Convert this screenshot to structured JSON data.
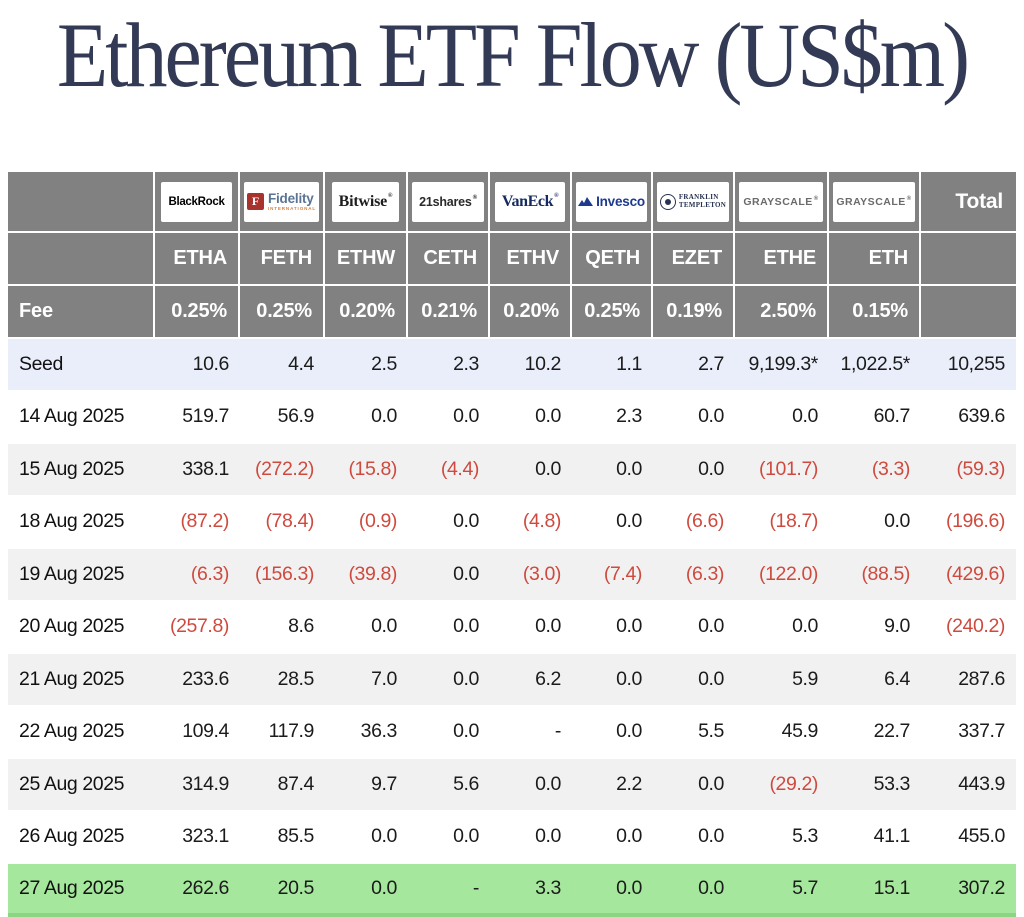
{
  "title": "Ethereum ETF Flow (US$m)",
  "colors": {
    "header_bg": "#818181",
    "seed_row_bg": "#e9eefa",
    "alt_row_bg": "#f1f1f2",
    "current_row_bg": "#a5e79c",
    "current_row_edge": "#8bd584",
    "negative_red": "#cf4a3e",
    "title_navy": "#333a55"
  },
  "chart_data": {
    "type": "table",
    "title": "Ethereum ETF Flow (US$m)",
    "total_label": "Total",
    "fee_label": "Fee",
    "issuers": [
      {
        "name": "BlackRock",
        "logo_kind": "blackrock"
      },
      {
        "name": "Fidelity",
        "sub": "INTERNATIONAL",
        "logo_kind": "fidelity"
      },
      {
        "name": "Bitwise",
        "mark": "®",
        "logo_kind": "bitwise"
      },
      {
        "name": "21shares",
        "mark": "®",
        "logo_kind": "21shares"
      },
      {
        "name": "VanEck",
        "mark": "®",
        "logo_kind": "vaneck"
      },
      {
        "name": "Invesco",
        "logo_kind": "invesco"
      },
      {
        "name": "Franklin Templeton",
        "lines": [
          "FRANKLIN",
          "TEMPLETON"
        ],
        "logo_kind": "franklin"
      },
      {
        "name": "GRAYSCALE",
        "mark": "®",
        "logo_kind": "grayscale"
      },
      {
        "name": "GRAYSCALE",
        "mark": "®",
        "logo_kind": "grayscale"
      }
    ],
    "tickers": [
      "ETHA",
      "FETH",
      "ETHW",
      "CETH",
      "ETHV",
      "QETH",
      "EZET",
      "ETHE",
      "ETH"
    ],
    "fees": [
      "0.25%",
      "0.25%",
      "0.20%",
      "0.21%",
      "0.20%",
      "0.25%",
      "0.19%",
      "2.50%",
      "0.15%"
    ],
    "rows": [
      {
        "label": "Seed",
        "highlight": "seed",
        "values": [
          "10.6",
          "4.4",
          "2.5",
          "2.3",
          "10.2",
          "1.1",
          "2.7",
          "9,199.3*",
          "1,022.5*"
        ],
        "total": "10,255"
      },
      {
        "label": "14 Aug 2025",
        "highlight": null,
        "values": [
          "519.7",
          "56.9",
          "0.0",
          "0.0",
          "0.0",
          "2.3",
          "0.0",
          "0.0",
          "60.7"
        ],
        "total": "639.6"
      },
      {
        "label": "15 Aug 2025",
        "highlight": null,
        "values": [
          "338.1",
          "(272.2)",
          "(15.8)",
          "(4.4)",
          "0.0",
          "0.0",
          "0.0",
          "(101.7)",
          "(3.3)"
        ],
        "total": "(59.3)"
      },
      {
        "label": "18 Aug 2025",
        "highlight": null,
        "values": [
          "(87.2)",
          "(78.4)",
          "(0.9)",
          "0.0",
          "(4.8)",
          "0.0",
          "(6.6)",
          "(18.7)",
          "0.0"
        ],
        "total": "(196.6)"
      },
      {
        "label": "19 Aug 2025",
        "highlight": null,
        "values": [
          "(6.3)",
          "(156.3)",
          "(39.8)",
          "0.0",
          "(3.0)",
          "(7.4)",
          "(6.3)",
          "(122.0)",
          "(88.5)"
        ],
        "total": "(429.6)"
      },
      {
        "label": "20 Aug 2025",
        "highlight": null,
        "values": [
          "(257.8)",
          "8.6",
          "0.0",
          "0.0",
          "0.0",
          "0.0",
          "0.0",
          "0.0",
          "9.0"
        ],
        "total": "(240.2)"
      },
      {
        "label": "21 Aug 2025",
        "highlight": null,
        "values": [
          "233.6",
          "28.5",
          "7.0",
          "0.0",
          "6.2",
          "0.0",
          "0.0",
          "5.9",
          "6.4"
        ],
        "total": "287.6"
      },
      {
        "label": "22 Aug 2025",
        "highlight": null,
        "values": [
          "109.4",
          "117.9",
          "36.3",
          "0.0",
          "-",
          "0.0",
          "5.5",
          "45.9",
          "22.7"
        ],
        "total": "337.7"
      },
      {
        "label": "25 Aug 2025",
        "highlight": null,
        "values": [
          "314.9",
          "87.4",
          "9.7",
          "5.6",
          "0.0",
          "2.2",
          "0.0",
          "(29.2)",
          "53.3"
        ],
        "total": "443.9"
      },
      {
        "label": "26 Aug 2025",
        "highlight": null,
        "values": [
          "323.1",
          "85.5",
          "0.0",
          "0.0",
          "0.0",
          "0.0",
          "0.0",
          "5.3",
          "41.1"
        ],
        "total": "455.0"
      },
      {
        "label": "27 Aug 2025",
        "highlight": "current",
        "values": [
          "262.6",
          "20.5",
          "0.0",
          "-",
          "3.3",
          "0.0",
          "0.0",
          "5.7",
          "15.1"
        ],
        "total": "307.2"
      }
    ]
  }
}
